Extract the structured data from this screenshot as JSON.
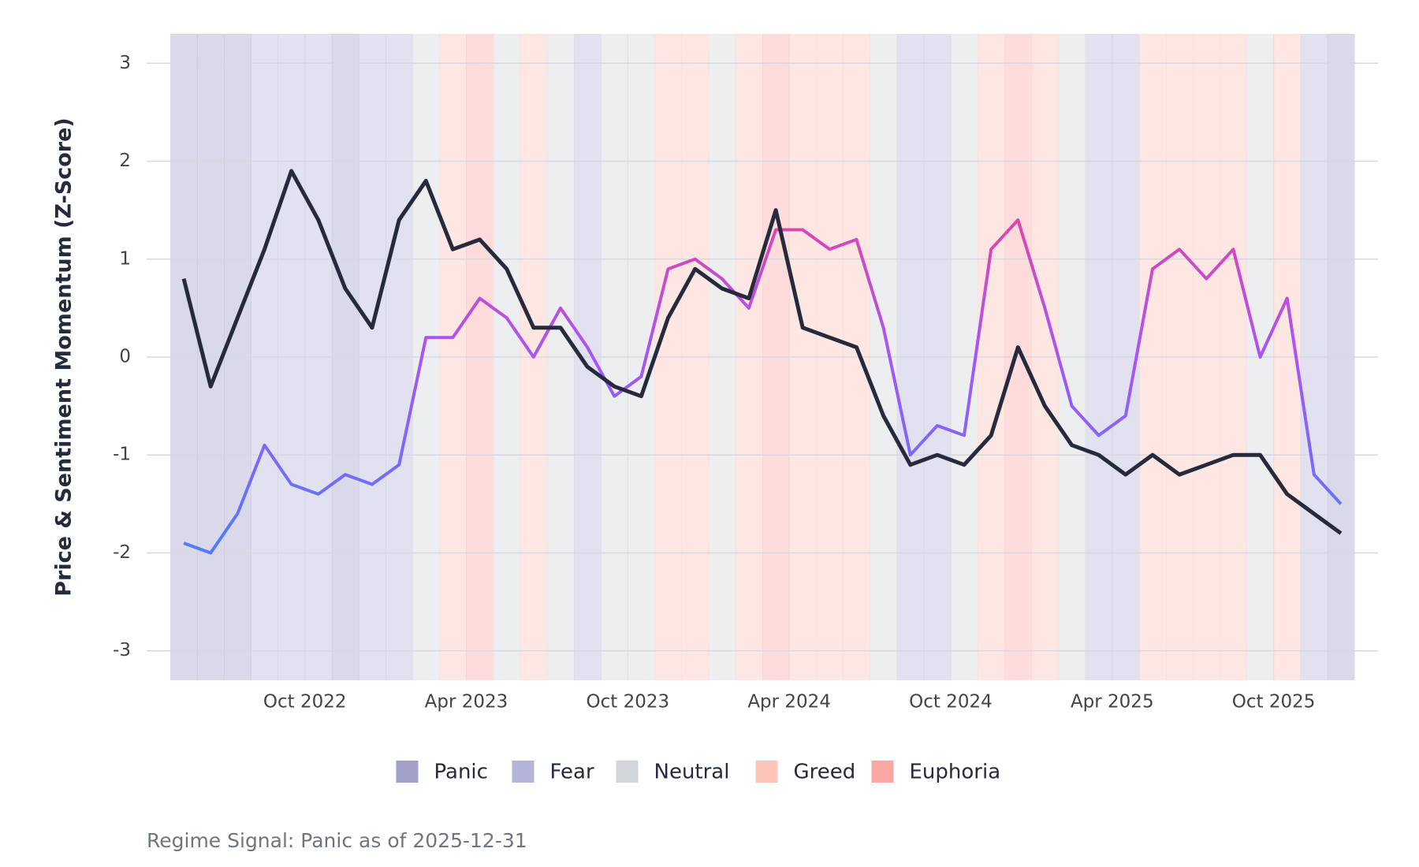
{
  "chart_data": {
    "type": "line",
    "y_label": "Price & Sentiment Momentum (Z-Score)",
    "caption": "Regime Signal: Panic as of 2025-12-31",
    "x": [
      "2022-05",
      "2022-06",
      "2022-07",
      "2022-08",
      "2022-09",
      "2022-10",
      "2022-11",
      "2022-12",
      "2023-01",
      "2023-02",
      "2023-03",
      "2023-04",
      "2023-05",
      "2023-06",
      "2023-07",
      "2023-08",
      "2023-09",
      "2023-10",
      "2023-11",
      "2023-12",
      "2024-01",
      "2024-02",
      "2024-03",
      "2024-04",
      "2024-05",
      "2024-06",
      "2024-07",
      "2024-08",
      "2024-09",
      "2024-10",
      "2024-11",
      "2024-12",
      "2025-01",
      "2025-02",
      "2025-03",
      "2025-04",
      "2025-05",
      "2025-06",
      "2025-07",
      "2025-08",
      "2025-09",
      "2025-10",
      "2025-11",
      "2025-12"
    ],
    "xlim": [
      "2022-05",
      "2025-12"
    ],
    "xticks": [
      {
        "value": "2022-10",
        "label": "Oct 2022"
      },
      {
        "value": "2023-04",
        "label": "Apr 2023"
      },
      {
        "value": "2023-10",
        "label": "Oct 2023"
      },
      {
        "value": "2024-04",
        "label": "Apr 2024"
      },
      {
        "value": "2024-10",
        "label": "Oct 2024"
      },
      {
        "value": "2025-04",
        "label": "Apr 2025"
      },
      {
        "value": "2025-10",
        "label": "Oct 2025"
      }
    ],
    "ylim": [
      -3.3,
      3.3
    ],
    "yticks": [
      -3,
      -2,
      -1,
      0,
      1,
      2,
      3
    ],
    "grid": true,
    "regimes": [
      "Panic",
      "Panic",
      "Panic",
      "Fear",
      "Fear",
      "Fear",
      "Panic",
      "Fear",
      "Fear",
      "Neutral",
      "Greed",
      "Euphoria",
      "Neutral",
      "Greed",
      "Neutral",
      "Fear",
      "Neutral",
      "Neutral",
      "Greed",
      "Greed",
      "Neutral",
      "Greed",
      "Euphoria",
      "Greed",
      "Greed",
      "Greed",
      "Neutral",
      "Fear",
      "Fear",
      "Neutral",
      "Greed",
      "Euphoria",
      "Greed",
      "Neutral",
      "Fear",
      "Fear",
      "Greed",
      "Greed",
      "Greed",
      "Greed",
      "Neutral",
      "Greed",
      "Fear",
      "Panic"
    ],
    "legend": [
      {
        "name": "Panic",
        "color": "#a0a0c8"
      },
      {
        "name": "Fear",
        "color": "#b4b4d6"
      },
      {
        "name": "Neutral",
        "color": "#d2d5da"
      },
      {
        "name": "Greed",
        "color": "#fdc4b8"
      },
      {
        "name": "Euphoria",
        "color": "#fda8a4"
      }
    ],
    "series": [
      {
        "colors": [
          "#f43f8e",
          "#a855f7",
          "#4f7cff"
        ],
        "values": [
          -1.9,
          -2.0,
          -1.6,
          -0.9,
          -1.3,
          -1.4,
          -1.2,
          -1.3,
          -1.1,
          0.2,
          0.2,
          0.6,
          0.4,
          0.0,
          0.5,
          0.1,
          -0.4,
          -0.2,
          0.9,
          1.0,
          0.8,
          0.5,
          1.3,
          1.3,
          1.1,
          1.2,
          0.3,
          -1.0,
          -0.7,
          -0.8,
          1.1,
          1.4,
          0.5,
          -0.5,
          -0.8,
          -0.6,
          0.9,
          1.1,
          0.8,
          1.1,
          0.0,
          0.6,
          -1.2,
          -1.5
        ]
      },
      {
        "color": "#262a3d",
        "values": [
          0.8,
          -0.3,
          0.4,
          1.1,
          1.9,
          1.4,
          0.7,
          0.3,
          1.4,
          1.8,
          1.1,
          1.2,
          0.9,
          0.3,
          0.3,
          -0.1,
          -0.3,
          -0.4,
          0.4,
          0.9,
          0.7,
          0.6,
          1.5,
          0.3,
          0.2,
          0.1,
          -0.6,
          -1.1,
          -1.0,
          -1.1,
          -0.8,
          0.1,
          -0.5,
          -0.9,
          -1.0,
          -1.2,
          -1.0,
          -1.2,
          -1.1,
          -1.0,
          -1.0,
          -1.4,
          -1.6,
          -1.8
        ]
      }
    ]
  }
}
